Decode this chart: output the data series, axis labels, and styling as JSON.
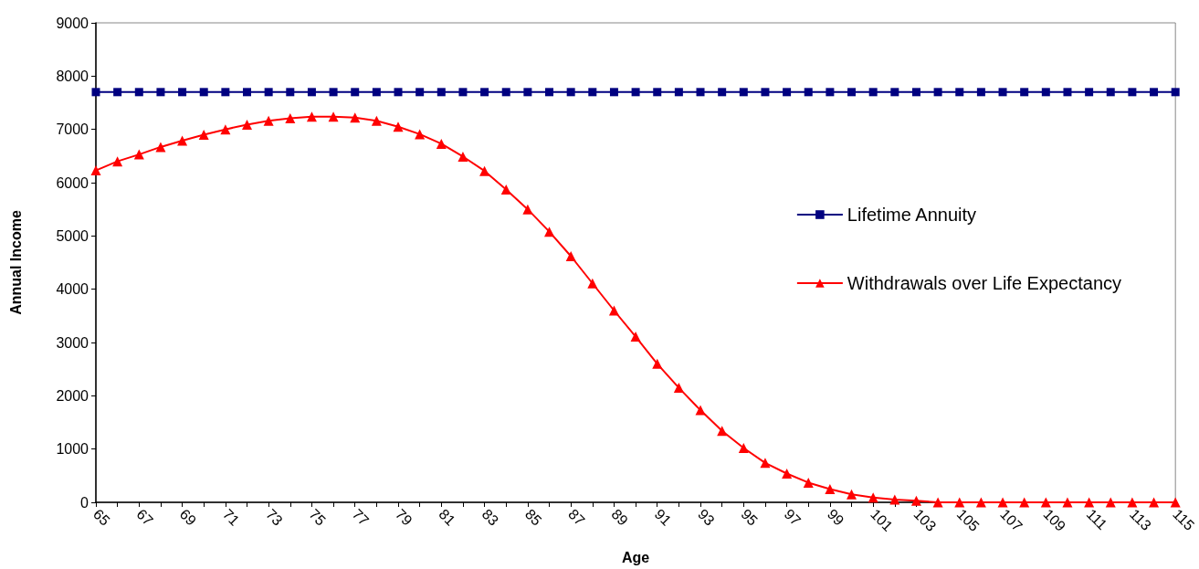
{
  "chart_data": {
    "type": "line",
    "xlabel": "Age",
    "ylabel": "Annual Income",
    "categories": [
      "65",
      null,
      "67",
      null,
      "69",
      null,
      "71",
      null,
      "73",
      null,
      "75",
      null,
      "77",
      null,
      "79",
      null,
      "81",
      null,
      "83",
      null,
      "85",
      null,
      "87",
      null,
      "89",
      null,
      "91",
      null,
      "93",
      null,
      "95",
      null,
      "97",
      null,
      "99",
      null,
      "101",
      null,
      "103",
      null,
      "105",
      null,
      "107",
      null,
      "109",
      null,
      "111",
      null,
      "113",
      null,
      "115"
    ],
    "series": [
      {
        "name": "Lifetime Annuity",
        "color": "#000080",
        "marker": "square",
        "values": [
          7700,
          7700,
          7700,
          7700,
          7700,
          7700,
          7700,
          7700,
          7700,
          7700,
          7700,
          7700,
          7700,
          7700,
          7700,
          7700,
          7700,
          7700,
          7700,
          7700,
          7700,
          7700,
          7700,
          7700,
          7700,
          7700,
          7700,
          7700,
          7700,
          7700,
          7700,
          7700,
          7700,
          7700,
          7700,
          7700,
          7700,
          7700,
          7700,
          7700,
          7700,
          7700,
          7700,
          7700,
          7700,
          7700,
          7700,
          7700,
          7700,
          7700,
          7700
        ]
      },
      {
        "name": "Withdrawals over Life Expectancy",
        "color": "#ff0000",
        "marker": "triangle",
        "values": [
          6230,
          6400,
          6530,
          6670,
          6790,
          6900,
          7000,
          7090,
          7160,
          7210,
          7240,
          7240,
          7220,
          7160,
          7050,
          6910,
          6730,
          6490,
          6220,
          5870,
          5500,
          5080,
          4620,
          4110,
          3600,
          3110,
          2600,
          2150,
          1730,
          1340,
          1020,
          740,
          540,
          370,
          250,
          150,
          90,
          50,
          30,
          0,
          0,
          0,
          0,
          0,
          0,
          0,
          0,
          0,
          0,
          0,
          0
        ]
      }
    ],
    "ylim": [
      0,
      9000
    ],
    "yticks": [
      0,
      1000,
      2000,
      3000,
      4000,
      5000,
      6000,
      7000,
      8000,
      9000
    ],
    "grid": false,
    "legend": "right",
    "line_style": "solid"
  }
}
